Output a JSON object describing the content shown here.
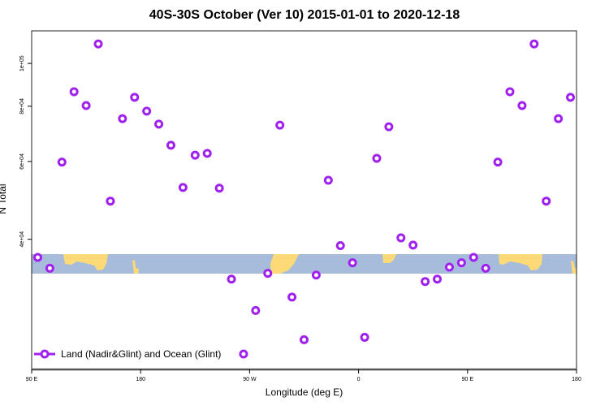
{
  "chart_data": {
    "type": "scatter",
    "title": "40S-30S October (Ver 10)   2015-01-01 to 2020-12-18",
    "xlabel": "Longitude (deg E)",
    "ylabel": "N Total",
    "xlim_deg_from": "90 E",
    "x_ticks": [
      {
        "lon": 90,
        "label": "90 E"
      },
      {
        "lon": 180,
        "label": "180"
      },
      {
        "lon": -90,
        "label": "90 W"
      },
      {
        "lon": 0,
        "label": "0"
      },
      {
        "lon": 90,
        "label": "90 E"
      },
      {
        "lon": 180,
        "label": "180"
      }
    ],
    "y_scale": "log",
    "ylim": [
      20300,
      118500
    ],
    "y_ticks": [
      {
        "value": 40000,
        "label": "4e+04"
      },
      {
        "value": 60000,
        "label": "6e+04"
      },
      {
        "value": 80000,
        "label": "8e+04"
      },
      {
        "value": 100000,
        "label": "1e+05"
      }
    ],
    "grid": false,
    "legend_position": "bottom-left",
    "series": [
      {
        "name": "Land (Nadir&Glint) and Ocean (Glint)",
        "color": "#a020f0",
        "marker": "open-circle",
        "points": [
          {
            "lon": 95,
            "value": 36400
          },
          {
            "lon": 105,
            "value": 34400
          },
          {
            "lon": 115,
            "value": 59800
          },
          {
            "lon": 125,
            "value": 86300
          },
          {
            "lon": 135,
            "value": 80300
          },
          {
            "lon": 145,
            "value": 110700
          },
          {
            "lon": 155,
            "value": 48800
          },
          {
            "lon": 165,
            "value": 75000
          },
          {
            "lon": 175,
            "value": 83800
          },
          {
            "lon": -175,
            "value": 78000
          },
          {
            "lon": -165,
            "value": 72900
          },
          {
            "lon": -155,
            "value": 65300
          },
          {
            "lon": -145,
            "value": 52400
          },
          {
            "lon": -135,
            "value": 62000
          },
          {
            "lon": -125,
            "value": 62600
          },
          {
            "lon": -115,
            "value": 52200
          },
          {
            "lon": -105,
            "value": 32500
          },
          {
            "lon": -95,
            "value": 22000
          },
          {
            "lon": -85,
            "value": 27600
          },
          {
            "lon": -75,
            "value": 33500
          },
          {
            "lon": -65,
            "value": 72500
          },
          {
            "lon": -55,
            "value": 29600
          },
          {
            "lon": -45,
            "value": 23700
          },
          {
            "lon": -35,
            "value": 33200
          },
          {
            "lon": -25,
            "value": 54400
          },
          {
            "lon": -15,
            "value": 38700
          },
          {
            "lon": -5,
            "value": 35400
          },
          {
            "lon": 5,
            "value": 24000
          },
          {
            "lon": 15,
            "value": 61000
          },
          {
            "lon": 25,
            "value": 71900
          },
          {
            "lon": 35,
            "value": 40300
          },
          {
            "lon": 45,
            "value": 38800
          },
          {
            "lon": 55,
            "value": 32100
          },
          {
            "lon": 65,
            "value": 32500
          },
          {
            "lon": 75,
            "value": 34600
          },
          {
            "lon": 85,
            "value": 35400
          }
        ]
      }
    ],
    "map_band": {
      "ocean_color": "#a7bcdb",
      "land_color": "#fdd978"
    }
  }
}
